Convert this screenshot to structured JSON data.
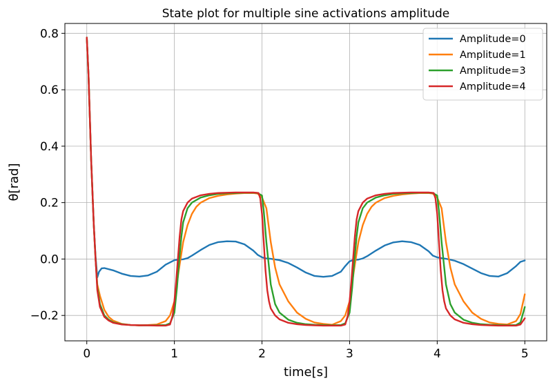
{
  "chart_data": {
    "type": "line",
    "title": "State plot for multiple sine activations amplitude",
    "xlabel": "time[s]",
    "ylabel": "θ[rad]",
    "xlim": [
      -0.25,
      5.25
    ],
    "ylim": [
      -0.29,
      0.835
    ],
    "xticks": [
      0,
      1,
      2,
      3,
      4,
      5
    ],
    "xtick_labels": [
      "0",
      "1",
      "2",
      "3",
      "4",
      "5"
    ],
    "yticks": [
      -0.2,
      0.0,
      0.2,
      0.4,
      0.6,
      0.8
    ],
    "ytick_labels": [
      "−0.2",
      "0.0",
      "0.2",
      "0.4",
      "0.6",
      "0.8"
    ],
    "grid": true,
    "legend_position": "top-right",
    "series": [
      {
        "name": "Amplitude=0",
        "color": "#1f77b4",
        "x": [
          0,
          0.02,
          0.05,
          0.08,
          0.1,
          0.12,
          0.14,
          0.17,
          0.2,
          0.3,
          0.4,
          0.5,
          0.6,
          0.7,
          0.8,
          0.9,
          1.0,
          1.05,
          1.1,
          1.15,
          1.2,
          1.3,
          1.4,
          1.5,
          1.6,
          1.7,
          1.8,
          1.9,
          1.95,
          2.0,
          2.05,
          2.1,
          2.2,
          2.3,
          2.4,
          2.5,
          2.6,
          2.7,
          2.8,
          2.9,
          2.95,
          3.0,
          3.05,
          3.1,
          3.15,
          3.2,
          3.3,
          3.4,
          3.5,
          3.6,
          3.7,
          3.8,
          3.9,
          3.95,
          4.0,
          4.05,
          4.1,
          4.2,
          4.3,
          4.4,
          4.5,
          4.6,
          4.7,
          4.8,
          4.9,
          4.95,
          5.0
        ],
        "y": [
          0.785,
          0.65,
          0.35,
          0.12,
          0.01,
          -0.065,
          -0.045,
          -0.033,
          -0.032,
          -0.04,
          -0.052,
          -0.06,
          -0.062,
          -0.058,
          -0.045,
          -0.02,
          -0.004,
          -0.002,
          -0.001,
          0.003,
          0.012,
          0.032,
          0.05,
          0.06,
          0.063,
          0.062,
          0.052,
          0.03,
          0.015,
          0.006,
          0.002,
          0.001,
          -0.004,
          -0.014,
          -0.03,
          -0.048,
          -0.06,
          -0.063,
          -0.06,
          -0.045,
          -0.025,
          -0.008,
          -0.003,
          -0.002,
          0.002,
          0.01,
          0.03,
          0.048,
          0.059,
          0.063,
          0.06,
          0.05,
          0.028,
          0.012,
          0.006,
          0.003,
          0.001,
          -0.006,
          -0.018,
          -0.034,
          -0.05,
          -0.06,
          -0.062,
          -0.05,
          -0.025,
          -0.01,
          -0.005
        ]
      },
      {
        "name": "Amplitude=1",
        "color": "#ff7f0e",
        "x": [
          0,
          0.02,
          0.05,
          0.08,
          0.1,
          0.12,
          0.15,
          0.2,
          0.25,
          0.3,
          0.4,
          0.5,
          0.6,
          0.7,
          0.8,
          0.9,
          0.95,
          1.0,
          1.05,
          1.1,
          1.15,
          1.2,
          1.25,
          1.3,
          1.4,
          1.5,
          1.6,
          1.7,
          1.8,
          1.9,
          1.95,
          2.0,
          2.05,
          2.1,
          2.15,
          2.2,
          2.3,
          2.4,
          2.5,
          2.6,
          2.7,
          2.8,
          2.9,
          2.95,
          3.0,
          3.05,
          3.1,
          3.15,
          3.2,
          3.25,
          3.3,
          3.4,
          3.5,
          3.6,
          3.7,
          3.8,
          3.9,
          3.95,
          4.0,
          4.05,
          4.1,
          4.15,
          4.2,
          4.3,
          4.4,
          4.5,
          4.6,
          4.7,
          4.8,
          4.9,
          4.95,
          5.0
        ],
        "y": [
          0.785,
          0.65,
          0.35,
          0.12,
          0.0,
          -0.09,
          -0.13,
          -0.18,
          -0.205,
          -0.218,
          -0.23,
          -0.234,
          -0.235,
          -0.234,
          -0.232,
          -0.22,
          -0.2,
          -0.15,
          -0.04,
          0.06,
          0.12,
          0.16,
          0.185,
          0.2,
          0.216,
          0.224,
          0.229,
          0.232,
          0.234,
          0.234,
          0.232,
          0.218,
          0.18,
          0.06,
          -0.03,
          -0.09,
          -0.15,
          -0.19,
          -0.212,
          -0.225,
          -0.23,
          -0.233,
          -0.22,
          -0.2,
          -0.15,
          -0.04,
          0.06,
          0.12,
          0.16,
          0.185,
          0.2,
          0.216,
          0.224,
          0.229,
          0.232,
          0.234,
          0.234,
          0.232,
          0.218,
          0.18,
          0.06,
          -0.03,
          -0.09,
          -0.15,
          -0.19,
          -0.212,
          -0.225,
          -0.23,
          -0.232,
          -0.22,
          -0.195,
          -0.125
        ]
      },
      {
        "name": "Amplitude=3",
        "color": "#2ca02c",
        "x": [
          0,
          0.02,
          0.05,
          0.08,
          0.1,
          0.12,
          0.15,
          0.2,
          0.25,
          0.3,
          0.4,
          0.5,
          0.6,
          0.7,
          0.8,
          0.9,
          0.95,
          1.0,
          1.03,
          1.05,
          1.08,
          1.1,
          1.15,
          1.2,
          1.3,
          1.4,
          1.5,
          1.6,
          1.7,
          1.8,
          1.9,
          1.95,
          2.0,
          2.02,
          2.05,
          2.08,
          2.1,
          2.15,
          2.2,
          2.3,
          2.4,
          2.5,
          2.6,
          2.7,
          2.8,
          2.9,
          2.95,
          3.0,
          3.03,
          3.05,
          3.08,
          3.1,
          3.15,
          3.2,
          3.3,
          3.4,
          3.5,
          3.6,
          3.7,
          3.8,
          3.9,
          3.95,
          4.0,
          4.02,
          4.05,
          4.08,
          4.1,
          4.15,
          4.2,
          4.3,
          4.4,
          4.5,
          4.6,
          4.7,
          4.8,
          4.9,
          4.95,
          5.0
        ],
        "y": [
          0.785,
          0.65,
          0.35,
          0.12,
          0.0,
          -0.1,
          -0.16,
          -0.2,
          -0.215,
          -0.224,
          -0.231,
          -0.234,
          -0.235,
          -0.235,
          -0.235,
          -0.234,
          -0.228,
          -0.19,
          -0.1,
          -0.02,
          0.08,
          0.13,
          0.18,
          0.2,
          0.218,
          0.226,
          0.231,
          0.233,
          0.234,
          0.235,
          0.235,
          0.234,
          0.225,
          0.17,
          0.06,
          -0.03,
          -0.09,
          -0.16,
          -0.19,
          -0.215,
          -0.226,
          -0.231,
          -0.233,
          -0.234,
          -0.235,
          -0.234,
          -0.228,
          -0.19,
          -0.1,
          -0.02,
          0.08,
          0.13,
          0.18,
          0.2,
          0.218,
          0.226,
          0.231,
          0.233,
          0.234,
          0.235,
          0.235,
          0.234,
          0.225,
          0.17,
          0.06,
          -0.03,
          -0.09,
          -0.16,
          -0.19,
          -0.215,
          -0.226,
          -0.231,
          -0.233,
          -0.234,
          -0.235,
          -0.234,
          -0.225,
          -0.17
        ]
      },
      {
        "name": "Amplitude=4",
        "color": "#d62728",
        "x": [
          0,
          0.02,
          0.05,
          0.08,
          0.1,
          0.12,
          0.15,
          0.2,
          0.25,
          0.3,
          0.4,
          0.5,
          0.6,
          0.7,
          0.8,
          0.9,
          0.95,
          0.98,
          1.0,
          1.02,
          1.04,
          1.06,
          1.08,
          1.1,
          1.15,
          1.2,
          1.3,
          1.4,
          1.5,
          1.6,
          1.7,
          1.8,
          1.9,
          1.96,
          1.98,
          2.0,
          2.02,
          2.04,
          2.06,
          2.08,
          2.1,
          2.15,
          2.2,
          2.3,
          2.4,
          2.5,
          2.6,
          2.7,
          2.8,
          2.9,
          2.95,
          2.98,
          3.0,
          3.02,
          3.04,
          3.06,
          3.08,
          3.1,
          3.15,
          3.2,
          3.3,
          3.4,
          3.5,
          3.6,
          3.7,
          3.8,
          3.9,
          3.96,
          3.98,
          4.0,
          4.02,
          4.04,
          4.06,
          4.08,
          4.1,
          4.15,
          4.2,
          4.3,
          4.4,
          4.5,
          4.6,
          4.7,
          4.8,
          4.9,
          4.95,
          5.0
        ],
        "y": [
          0.785,
          0.65,
          0.35,
          0.12,
          0.0,
          -0.11,
          -0.17,
          -0.205,
          -0.218,
          -0.226,
          -0.232,
          -0.234,
          -0.235,
          -0.235,
          -0.236,
          -0.236,
          -0.232,
          -0.2,
          -0.15,
          -0.08,
          0.0,
          0.08,
          0.14,
          0.17,
          0.2,
          0.214,
          0.226,
          0.231,
          0.234,
          0.235,
          0.236,
          0.236,
          0.236,
          0.234,
          0.215,
          0.16,
          0.06,
          -0.04,
          -0.11,
          -0.15,
          -0.175,
          -0.2,
          -0.214,
          -0.226,
          -0.231,
          -0.234,
          -0.235,
          -0.236,
          -0.236,
          -0.236,
          -0.232,
          -0.2,
          -0.15,
          -0.08,
          0.0,
          0.08,
          0.14,
          0.17,
          0.2,
          0.214,
          0.226,
          0.231,
          0.234,
          0.235,
          0.236,
          0.236,
          0.236,
          0.234,
          0.215,
          0.16,
          0.06,
          -0.04,
          -0.11,
          -0.15,
          -0.175,
          -0.2,
          -0.214,
          -0.226,
          -0.231,
          -0.234,
          -0.235,
          -0.236,
          -0.236,
          -0.236,
          -0.232,
          -0.21
        ]
      }
    ]
  }
}
